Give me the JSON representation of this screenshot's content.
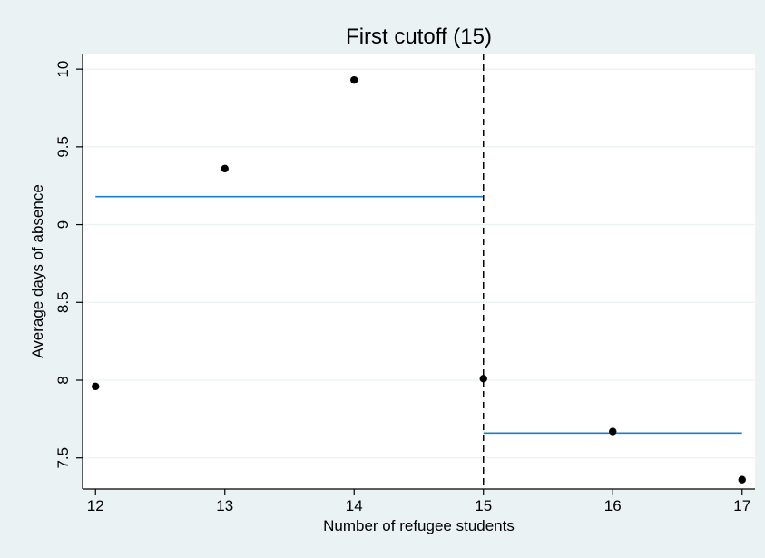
{
  "chart_data": {
    "type": "scatter",
    "title": "First cutoff (15)",
    "xlabel": "Number of refugee students",
    "ylabel": "Average days of absence",
    "xlim": [
      11.9,
      17.1
    ],
    "ylim": [
      7.3,
      10.1
    ],
    "xticks": [
      12,
      13,
      14,
      15,
      16,
      17
    ],
    "yticks": [
      7.5,
      8,
      8.5,
      9,
      9.5,
      10
    ],
    "xtick_labels": [
      "12",
      "13",
      "14",
      "15",
      "16",
      "17"
    ],
    "ytick_labels": [
      "7.5",
      "8",
      "8.5",
      "9",
      "9.5",
      "10"
    ],
    "grid": "horizontal",
    "legend": "none",
    "points": [
      {
        "x": 12,
        "y": 7.96
      },
      {
        "x": 13,
        "y": 9.36
      },
      {
        "x": 14,
        "y": 9.93
      },
      {
        "x": 15,
        "y": 8.01
      },
      {
        "x": 16,
        "y": 7.67
      },
      {
        "x": 17,
        "y": 7.36
      }
    ],
    "fit_lines": [
      {
        "x": [
          12,
          15
        ],
        "y": [
          9.18,
          9.18
        ]
      },
      {
        "x": [
          15,
          17
        ],
        "y": [
          7.66,
          7.66
        ]
      }
    ],
    "cutoff": 15,
    "colors": {
      "background": "#EAF2F3",
      "plot_area": "#FFFFFF",
      "grid": "#EAF2F3",
      "points": "#000000",
      "fit_line": "#1A7FC9",
      "cutoff_line": "#000000"
    }
  }
}
